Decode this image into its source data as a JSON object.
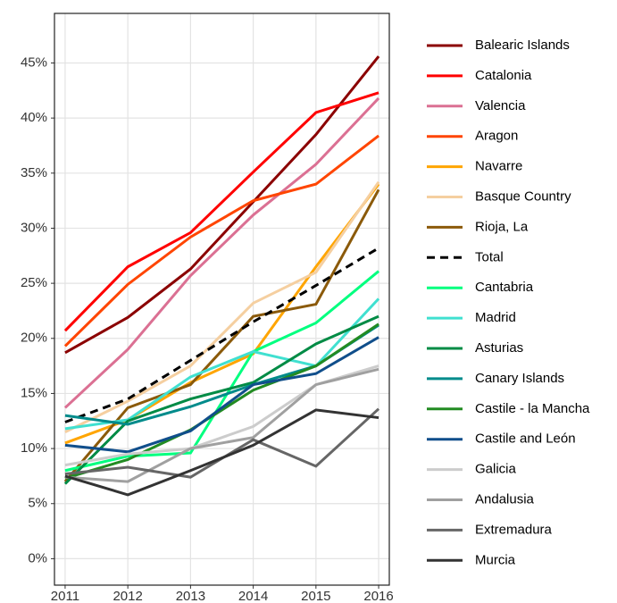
{
  "chart_data": {
    "type": "line",
    "x": [
      2011,
      2012,
      2013,
      2014,
      2015,
      2016
    ],
    "xlim": [
      2010.83,
      2016.17
    ],
    "xticks": [
      2011,
      2012,
      2013,
      2014,
      2015,
      2016
    ],
    "ylim": [
      -2.4,
      49.5
    ],
    "yticks": [
      {
        "value": 0,
        "label": "0%"
      },
      {
        "value": 5,
        "label": "5%"
      },
      {
        "value": 10,
        "label": "10%"
      },
      {
        "value": 15,
        "label": "15%"
      },
      {
        "value": 20,
        "label": "20%"
      },
      {
        "value": 25,
        "label": "25%"
      },
      {
        "value": 30,
        "label": "30%"
      },
      {
        "value": 35,
        "label": "35%"
      },
      {
        "value": 40,
        "label": "40%"
      },
      {
        "value": 45,
        "label": "45%"
      }
    ],
    "grid": true,
    "legend": "right",
    "series": [
      {
        "name": "Balearic Islands",
        "color": "#8b0000",
        "values": [
          18.7,
          21.9,
          26.3,
          32.4,
          38.5,
          45.6
        ]
      },
      {
        "name": "Catalonia",
        "color": "#ff0000",
        "values": [
          20.7,
          26.5,
          29.6,
          35.1,
          40.5,
          42.3
        ]
      },
      {
        "name": "Valencia",
        "color": "#db7093",
        "values": [
          13.7,
          19.0,
          25.7,
          31.2,
          35.8,
          41.8
        ]
      },
      {
        "name": "Aragon",
        "color": "#ff4500",
        "values": [
          19.3,
          24.9,
          29.2,
          32.5,
          34.0,
          38.4
        ]
      },
      {
        "name": "Navarre",
        "color": "#ffa500",
        "values": [
          10.5,
          12.6,
          16.0,
          18.6,
          26.5,
          34.0
        ]
      },
      {
        "name": "Basque Country",
        "color": "#f5cfa0",
        "values": [
          11.5,
          14.3,
          17.5,
          23.2,
          26.0,
          34.2
        ]
      },
      {
        "name": "Rioja, La",
        "color": "#8b5a0a",
        "values": [
          7.0,
          13.7,
          15.8,
          22.0,
          23.1,
          33.5
        ]
      },
      {
        "name": "Total",
        "color": "#000000",
        "dashed": true,
        "values": [
          12.4,
          14.5,
          18.0,
          21.5,
          24.8,
          28.2
        ]
      },
      {
        "name": "Cantabria",
        "color": "#00ff7f",
        "values": [
          8.0,
          9.3,
          9.6,
          18.8,
          21.4,
          26.1
        ]
      },
      {
        "name": "Madrid",
        "color": "#40e0d0",
        "values": [
          11.8,
          12.6,
          16.5,
          18.8,
          17.5,
          23.6
        ]
      },
      {
        "name": "Asturias",
        "color": "#008b45",
        "values": [
          6.8,
          12.5,
          14.5,
          16.0,
          19.5,
          22.0
        ]
      },
      {
        "name": "Canary Islands",
        "color": "#008b8b",
        "values": [
          13.0,
          12.2,
          13.8,
          15.8,
          17.5,
          21.2
        ]
      },
      {
        "name": "Castile - la Mancha",
        "color": "#228b22",
        "values": [
          7.3,
          9.0,
          11.7,
          15.3,
          17.5,
          21.3
        ]
      },
      {
        "name": "Castile and León",
        "color": "#104e8b",
        "values": [
          10.3,
          9.7,
          11.6,
          15.8,
          16.8,
          20.1
        ]
      },
      {
        "name": "Galicia",
        "color": "#cccccc",
        "values": [
          8.5,
          9.5,
          10.0,
          12.0,
          15.8,
          17.5
        ]
      },
      {
        "name": "Andalusia",
        "color": "#a0a0a0",
        "values": [
          7.4,
          7.0,
          10.0,
          11.0,
          15.8,
          17.2
        ]
      },
      {
        "name": "Extremadura",
        "color": "#666666",
        "values": [
          7.7,
          8.3,
          7.4,
          10.8,
          8.4,
          13.6
        ]
      },
      {
        "name": "Murcia",
        "color": "#333333",
        "values": [
          7.5,
          5.8,
          8.0,
          10.3,
          13.5,
          12.8
        ]
      }
    ]
  }
}
